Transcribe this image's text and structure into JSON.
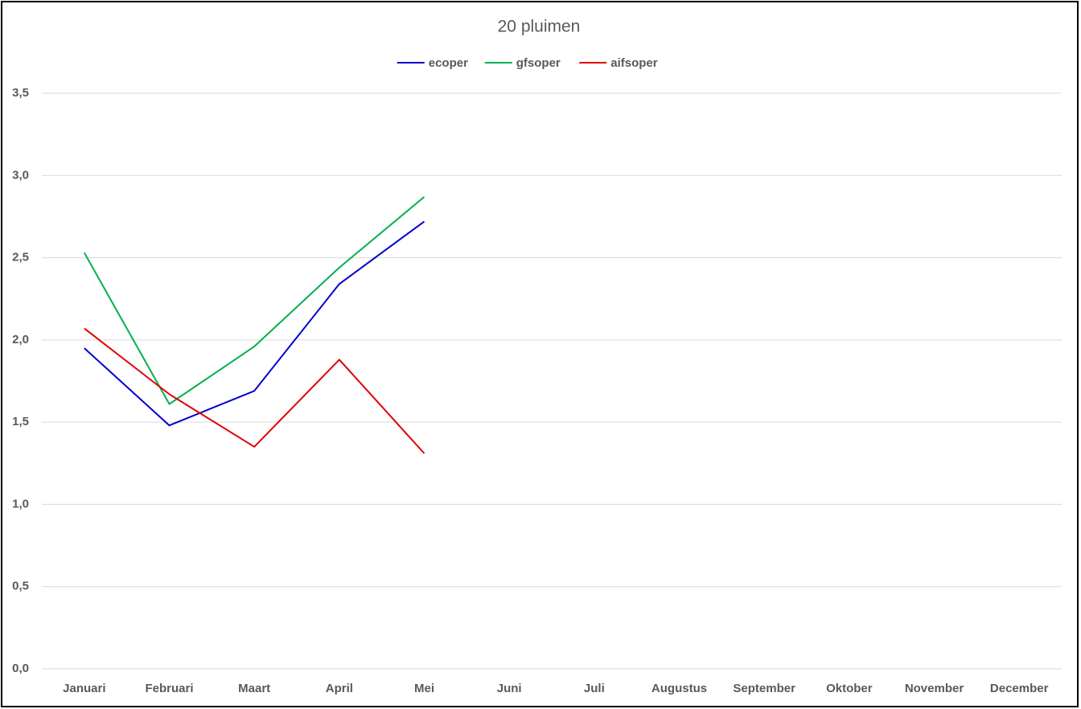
{
  "chart_data": {
    "type": "line",
    "title": "20 pluimen",
    "categories": [
      "Januari",
      "Februari",
      "Maart",
      "April",
      "Mei",
      "Juni",
      "Juli",
      "Augustus",
      "September",
      "Oktober",
      "November",
      "December"
    ],
    "series": [
      {
        "name": "ecoper",
        "color": "#0000d0",
        "values": [
          1.95,
          1.48,
          1.69,
          2.34,
          2.72,
          null,
          null,
          null,
          null,
          null,
          null,
          null
        ]
      },
      {
        "name": "gfsoper",
        "color": "#00b050",
        "values": [
          2.53,
          1.61,
          1.96,
          2.44,
          2.87,
          null,
          null,
          null,
          null,
          null,
          null,
          null
        ]
      },
      {
        "name": "aifsoper",
        "color": "#e00000",
        "values": [
          2.07,
          1.67,
          1.35,
          1.88,
          1.31,
          null,
          null,
          null,
          null,
          null,
          null,
          null
        ]
      }
    ],
    "ylim": [
      0,
      3.5
    ],
    "yticks": [
      {
        "value": 0,
        "label": "0,0"
      },
      {
        "value": 0.5,
        "label": "0,5"
      },
      {
        "value": 1,
        "label": "1,0"
      },
      {
        "value": 1.5,
        "label": "1,5"
      },
      {
        "value": 2,
        "label": "2,0"
      },
      {
        "value": 2.5,
        "label": "2,5"
      },
      {
        "value": 3,
        "label": "3,0"
      },
      {
        "value": 3.5,
        "label": "3,5"
      }
    ],
    "grid": true,
    "legend": "top"
  }
}
